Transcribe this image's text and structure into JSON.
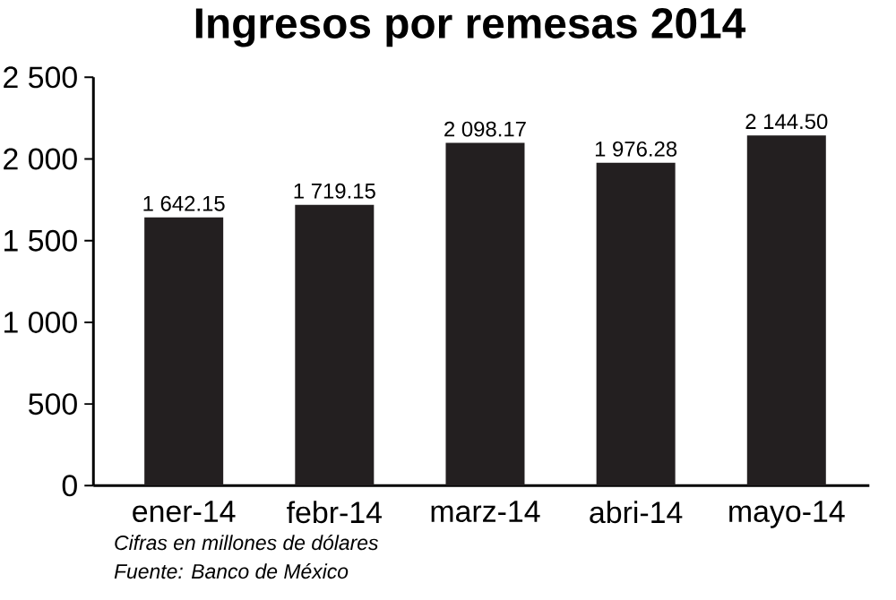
{
  "chart_data": {
    "type": "bar",
    "title": "Ingresos por remesas 2014",
    "categories": [
      "ener-14",
      "febr-14",
      "marz-14",
      "abri-14",
      "mayo-14"
    ],
    "values": [
      1642.15,
      1719.15,
      2098.17,
      1976.28,
      2144.5
    ],
    "value_labels": [
      "1 642.15",
      "1 719.15",
      "2 098.17",
      "1 976.28",
      "2 144.50"
    ],
    "color": "#231f20",
    "ylim": [
      0,
      2500
    ],
    "yticks": [
      0,
      500,
      {
        "value": 1000,
        "label": "1 000"
      },
      {
        "value": 1500,
        "label": "1 500"
      },
      {
        "value": 2000,
        "label": "2 000"
      },
      {
        "value": 2500,
        "label": "2 500"
      }
    ],
    "annotations": [
      "Cifras en millones de dólares",
      "Fuente: Banco de México"
    ]
  }
}
